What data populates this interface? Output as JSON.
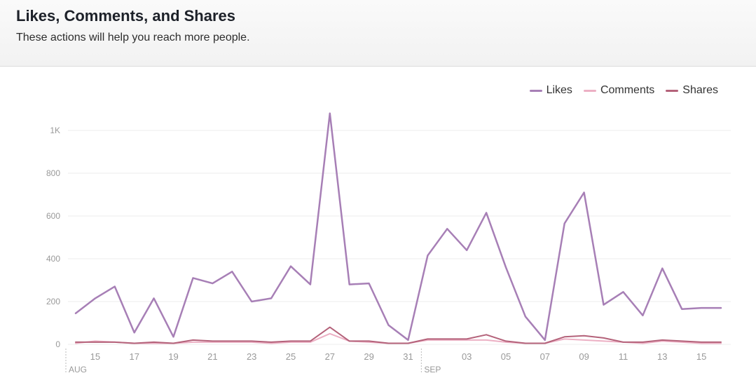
{
  "header": {
    "title": "Likes, Comments, and Shares",
    "subtitle": "These actions will help you reach more people."
  },
  "colors": {
    "likes": "#a77fb6",
    "comments": "#ecb0c4",
    "shares": "#b4627a",
    "grid": "#ececec",
    "axis_text": "#999999"
  },
  "chart_data": {
    "type": "line",
    "ylim": [
      0,
      1000
    ],
    "yticks": [
      0,
      200,
      400,
      600,
      800,
      1000
    ],
    "ytick_labels": [
      "0",
      "200",
      "400",
      "600",
      "800",
      "1K"
    ],
    "x": [
      "Aug 14",
      "Aug 15",
      "Aug 16",
      "Aug 17",
      "Aug 18",
      "Aug 19",
      "Aug 20",
      "Aug 21",
      "Aug 22",
      "Aug 23",
      "Aug 24",
      "Aug 25",
      "Aug 26",
      "Aug 27",
      "Aug 28",
      "Aug 29",
      "Aug 30",
      "Aug 31",
      "Sep 01",
      "Sep 02",
      "Sep 03",
      "Sep 04",
      "Sep 05",
      "Sep 06",
      "Sep 07",
      "Sep 08",
      "Sep 09",
      "Sep 10",
      "Sep 11",
      "Sep 12",
      "Sep 13",
      "Sep 14",
      "Sep 15",
      "Sep 16"
    ],
    "xtick_labels": [
      "15",
      "17",
      "19",
      "21",
      "23",
      "25",
      "27",
      "29",
      "31",
      "03",
      "05",
      "07",
      "09",
      "11",
      "13",
      "15"
    ],
    "xtick_index": [
      1,
      3,
      5,
      7,
      9,
      11,
      13,
      15,
      17,
      20,
      22,
      24,
      26,
      28,
      30,
      32
    ],
    "month_labels": [
      {
        "label": "AUG",
        "index": 0
      },
      {
        "label": "SEP",
        "index": 18
      }
    ],
    "legend_position": "top-right",
    "series": [
      {
        "name": "Likes",
        "color_key": "likes",
        "values": [
          145,
          215,
          270,
          55,
          215,
          35,
          310,
          285,
          340,
          200,
          215,
          365,
          280,
          1080,
          280,
          285,
          90,
          20,
          415,
          540,
          440,
          615,
          360,
          130,
          20,
          565,
          710,
          185,
          245,
          135,
          355,
          165,
          170,
          170
        ]
      },
      {
        "name": "Comments",
        "color_key": "comments",
        "values": [
          5,
          15,
          10,
          5,
          5,
          5,
          10,
          10,
          10,
          10,
          5,
          10,
          10,
          50,
          15,
          10,
          5,
          5,
          20,
          20,
          20,
          20,
          10,
          5,
          5,
          25,
          20,
          15,
          10,
          5,
          15,
          10,
          5,
          5
        ]
      },
      {
        "name": "Shares",
        "color_key": "shares",
        "values": [
          10,
          10,
          10,
          5,
          10,
          5,
          20,
          15,
          15,
          15,
          10,
          15,
          15,
          80,
          15,
          15,
          5,
          5,
          25,
          25,
          25,
          45,
          15,
          5,
          5,
          35,
          40,
          30,
          10,
          10,
          20,
          15,
          10,
          10
        ]
      }
    ]
  }
}
